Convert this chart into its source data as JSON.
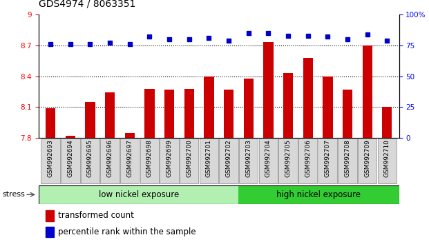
{
  "title": "GDS4974 / 8063351",
  "categories": [
    "GSM992693",
    "GSM992694",
    "GSM992695",
    "GSM992696",
    "GSM992697",
    "GSM992698",
    "GSM992699",
    "GSM992700",
    "GSM992701",
    "GSM992702",
    "GSM992703",
    "GSM992704",
    "GSM992705",
    "GSM992706",
    "GSM992707",
    "GSM992708",
    "GSM992709",
    "GSM992710"
  ],
  "bar_values": [
    8.09,
    7.82,
    8.15,
    8.24,
    7.85,
    8.28,
    8.27,
    8.28,
    8.4,
    8.27,
    8.38,
    8.73,
    8.43,
    8.58,
    8.4,
    8.27,
    8.7,
    8.1
  ],
  "dot_values": [
    76,
    76,
    76,
    77,
    76,
    82,
    80,
    80,
    81,
    79,
    85,
    85,
    83,
    83,
    82,
    80,
    84,
    79
  ],
  "bar_color": "#cc0000",
  "dot_color": "#0000cc",
  "ylim_left": [
    7.8,
    9.0
  ],
  "ylim_right": [
    0,
    100
  ],
  "yticks_left": [
    7.8,
    8.1,
    8.4,
    8.7,
    9.0
  ],
  "yticks_right": [
    0,
    25,
    50,
    75,
    100
  ],
  "ytick_labels_left": [
    "7.8",
    "8.1",
    "8.4",
    "8.7",
    "9"
  ],
  "ytick_labels_right": [
    "0",
    "25",
    "50",
    "75",
    "100%"
  ],
  "group1_label": "low nickel exposure",
  "group2_label": "high nickel exposure",
  "group1_count": 10,
  "group2_count": 8,
  "group1_color": "#b2f0b2",
  "group2_color": "#33cc33",
  "stress_label": "stress",
  "legend_bar": "transformed count",
  "legend_dot": "percentile rank within the sample",
  "background_color": "#ffffff",
  "grid_lines": [
    8.1,
    8.4,
    8.7
  ],
  "title_fontsize": 10,
  "tick_fontsize": 7.5,
  "label_fontsize": 8.5,
  "bar_width": 0.5
}
